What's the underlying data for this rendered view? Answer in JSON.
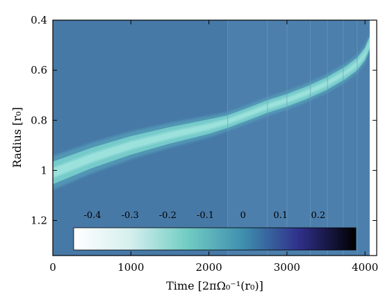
{
  "chart_data": {
    "type": "heatmap",
    "title": "",
    "xlabel": "Time [2πΩ₀⁻¹(r₀)]",
    "ylabel": "Radius [r₀]",
    "xlim": [
      0,
      4150
    ],
    "ylim": [
      0.4,
      1.34
    ],
    "y_inverted": true,
    "x_ticks": [
      0,
      1000,
      2000,
      3000,
      4000
    ],
    "x_tick_labels": [
      "0",
      "1000",
      "2000",
      "3000",
      "4000"
    ],
    "y_ticks": [
      0.4,
      0.6,
      0.8,
      1.0,
      1.2
    ],
    "y_tick_labels": [
      "0.4",
      "0.6",
      "0.8",
      "1",
      "1.2"
    ],
    "data_extent_time": 4060,
    "background_level": -0.05,
    "ridge": {
      "time": [
        0,
        500,
        1000,
        1500,
        2000,
        2240,
        2500,
        2750,
        3000,
        3250,
        3500,
        3750,
        3900,
        4000,
        4060
      ],
      "radius": [
        1.01,
        0.95,
        0.9,
        0.86,
        0.825,
        0.805,
        0.775,
        0.745,
        0.72,
        0.69,
        0.655,
        0.61,
        0.575,
        0.535,
        0.49
      ],
      "level": -0.3
    },
    "colorbar": {
      "vmin": -0.45,
      "vmax": 0.3,
      "ticks": [
        -0.4,
        -0.3,
        -0.2,
        -0.1,
        0,
        0.1,
        0.2
      ],
      "tick_labels": [
        "-0.4",
        "-0.3",
        "-0.2",
        "-0.1",
        "0",
        "0.1",
        "0.2"
      ],
      "colors": [
        "#ffffff",
        "#d5efee",
        "#72cdc4",
        "#3f8fae",
        "#2f2f8a",
        "#000000"
      ],
      "placement": "inside-bottom"
    },
    "colors": {
      "background": "#4779a7",
      "ridge_core": "#a4e6e0",
      "ridge_edge": "#5aaec0"
    }
  }
}
